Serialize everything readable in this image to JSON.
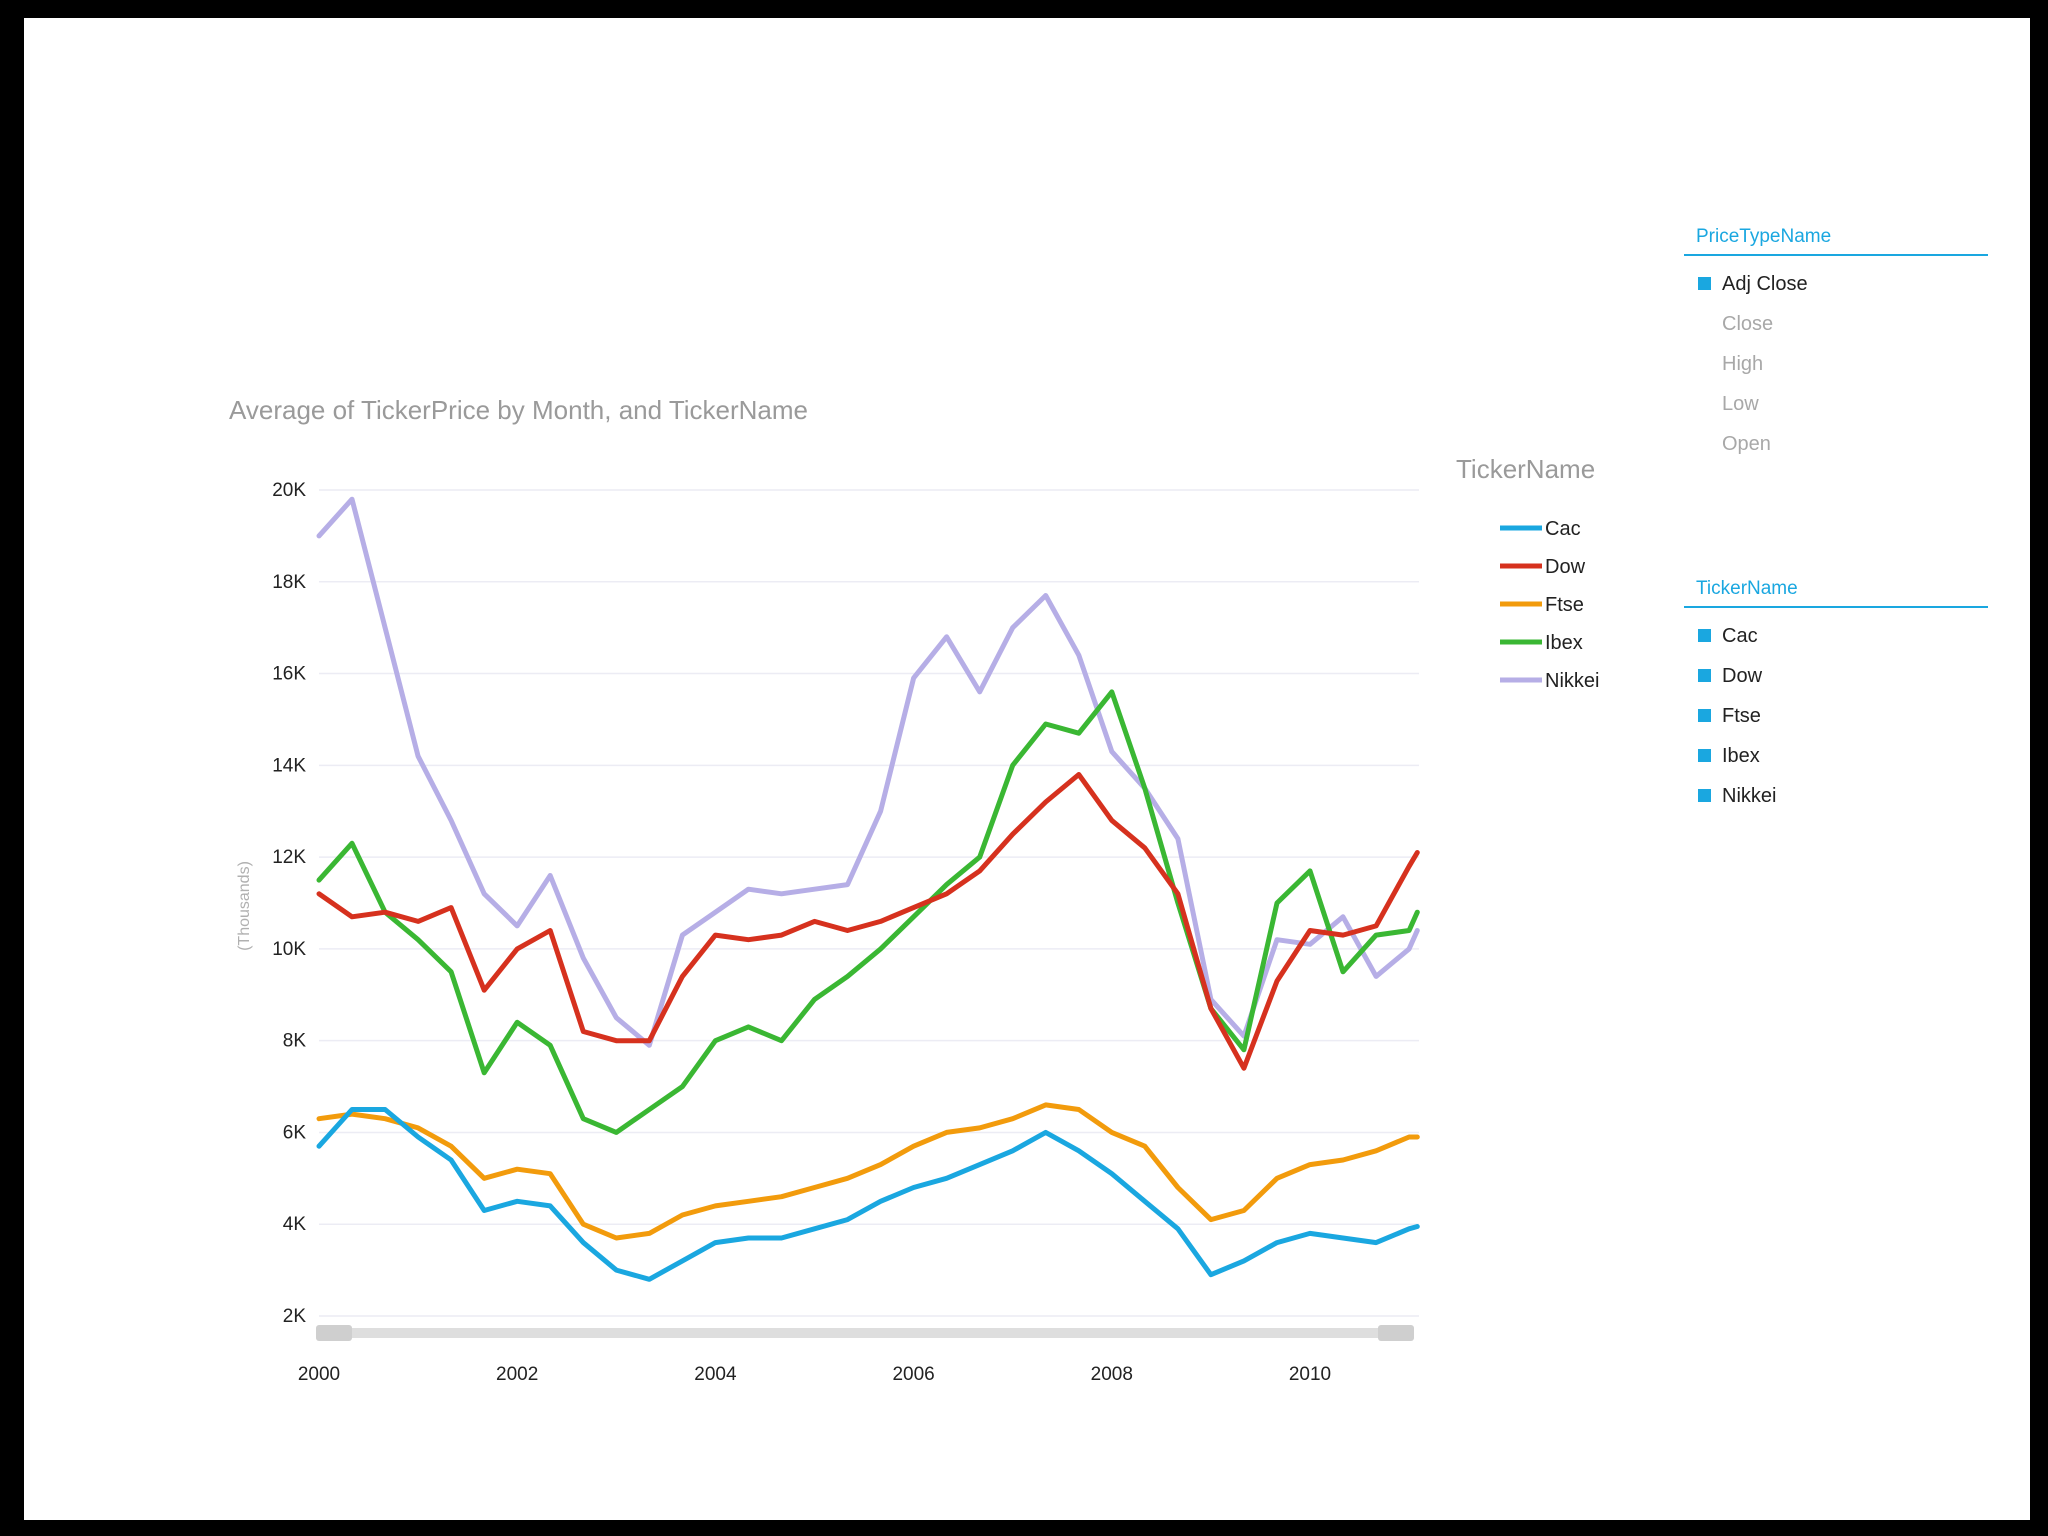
{
  "colors": {
    "cac": "#1aa7e0",
    "dow": "#d6311e",
    "ftse": "#f29b0c",
    "ibex": "#3ab733",
    "nikkei": "#b6aee6",
    "slicer_accent": "#1aa7e0"
  },
  "slicers": [
    {
      "title": "PriceTypeName",
      "items": [
        {
          "label": "Adj Close",
          "selected": true
        },
        {
          "label": "Close",
          "selected": false
        },
        {
          "label": "High",
          "selected": false
        },
        {
          "label": "Low",
          "selected": false
        },
        {
          "label": "Open",
          "selected": false
        }
      ]
    },
    {
      "title": "TickerName",
      "items": [
        {
          "label": "Cac",
          "selected": true
        },
        {
          "label": "Dow",
          "selected": true
        },
        {
          "label": "Ftse",
          "selected": true
        },
        {
          "label": "Ibex",
          "selected": true
        },
        {
          "label": "Nikkei",
          "selected": true
        }
      ]
    }
  ],
  "chart_data": {
    "type": "line",
    "title": "Average of TickerPrice by Month, and TickerName",
    "xlabel": "",
    "ylabel": "(Thousands)",
    "legend_title": "TickerName",
    "legend_position": "right",
    "grid": true,
    "x_ticks": [
      "2000",
      "2002",
      "2004",
      "2006",
      "2008",
      "2010"
    ],
    "y_ticks": [
      "2K",
      "4K",
      "6K",
      "8K",
      "10K",
      "12K",
      "14K",
      "16K",
      "18K",
      "20K"
    ],
    "ylim": [
      2000,
      20000
    ],
    "x": [
      "2000-01",
      "2000-05",
      "2000-09",
      "2001-01",
      "2001-05",
      "2001-09",
      "2002-01",
      "2002-05",
      "2002-09",
      "2003-01",
      "2003-05",
      "2003-09",
      "2004-01",
      "2004-05",
      "2004-09",
      "2005-01",
      "2005-05",
      "2005-09",
      "2006-01",
      "2006-05",
      "2006-09",
      "2007-01",
      "2007-05",
      "2007-09",
      "2008-01",
      "2008-05",
      "2008-09",
      "2009-01",
      "2009-05",
      "2009-09",
      "2010-01",
      "2010-05",
      "2010-09",
      "2011-01",
      "2011-02"
    ],
    "series": [
      {
        "name": "Cac",
        "values": [
          5700,
          6500,
          6500,
          5900,
          5400,
          4300,
          4500,
          4400,
          3600,
          3000,
          2800,
          3200,
          3600,
          3700,
          3700,
          3900,
          4100,
          4500,
          4800,
          5000,
          5300,
          5600,
          6000,
          5600,
          5100,
          4500,
          3900,
          2900,
          3200,
          3600,
          3800,
          3700,
          3600,
          3900,
          3950
        ]
      },
      {
        "name": "Dow",
        "values": [
          11200,
          10700,
          10800,
          10600,
          10900,
          9100,
          10000,
          10400,
          8200,
          8000,
          8000,
          9400,
          10300,
          10200,
          10300,
          10600,
          10400,
          10600,
          10900,
          11200,
          11700,
          12500,
          13200,
          13800,
          12800,
          12200,
          11200,
          8700,
          7400,
          9300,
          10400,
          10300,
          10500,
          11800,
          12100
        ]
      },
      {
        "name": "Ftse",
        "values": [
          6300,
          6400,
          6300,
          6100,
          5700,
          5000,
          5200,
          5100,
          4000,
          3700,
          3800,
          4200,
          4400,
          4500,
          4600,
          4800,
          5000,
          5300,
          5700,
          6000,
          6100,
          6300,
          6600,
          6500,
          6000,
          5700,
          4800,
          4100,
          4300,
          5000,
          5300,
          5400,
          5600,
          5900,
          5900
        ]
      },
      {
        "name": "Ibex",
        "values": [
          11500,
          12300,
          10800,
          10200,
          9500,
          7300,
          8400,
          7900,
          6300,
          6000,
          6500,
          7000,
          8000,
          8300,
          8000,
          8900,
          9400,
          10000,
          10700,
          11400,
          12000,
          14000,
          14900,
          14700,
          15600,
          13500,
          11000,
          8700,
          7800,
          11000,
          11700,
          9500,
          10300,
          10400,
          10800
        ]
      },
      {
        "name": "Nikkei",
        "values": [
          19000,
          19800,
          17000,
          14200,
          12800,
          11200,
          10500,
          11600,
          9800,
          8500,
          7900,
          10300,
          10800,
          11300,
          11200,
          11300,
          11400,
          13000,
          15900,
          16800,
          15600,
          17000,
          17700,
          16400,
          14300,
          13500,
          12400,
          8900,
          8100,
          10200,
          10100,
          10700,
          9400,
          10000,
          10400
        ]
      }
    ]
  }
}
